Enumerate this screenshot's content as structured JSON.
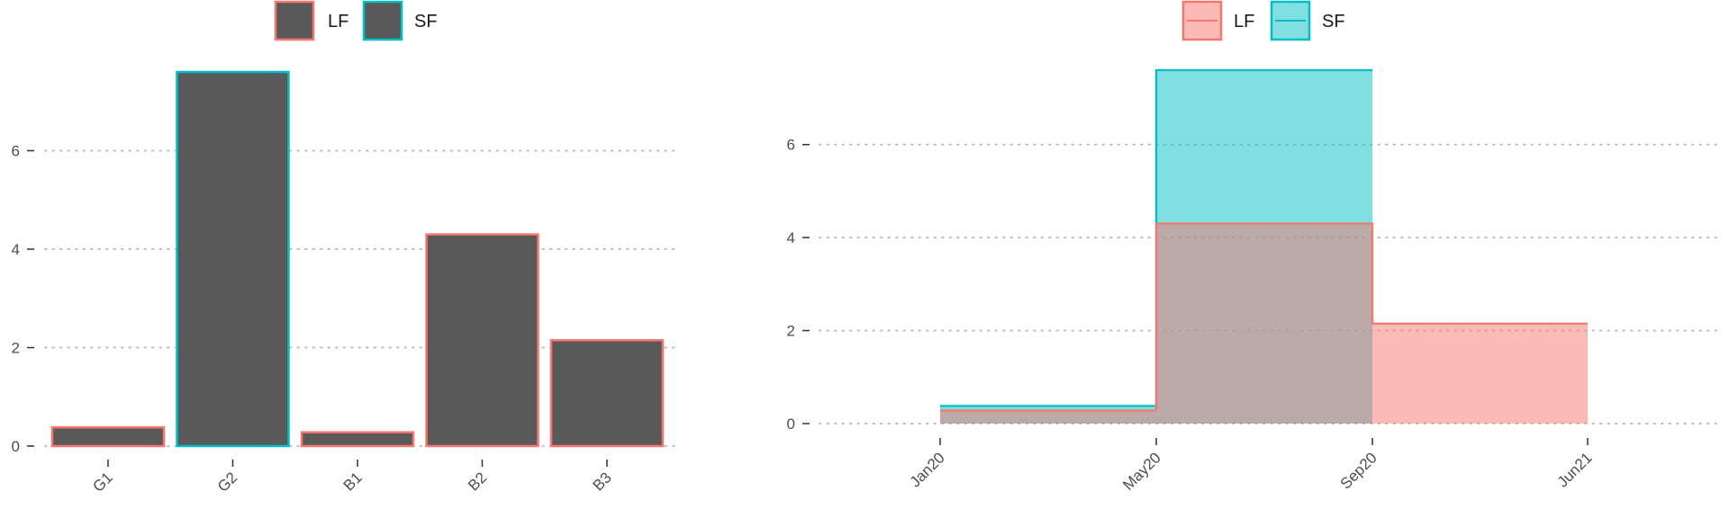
{
  "colors": {
    "LF": "#F8766D",
    "SF": "#00BFC4",
    "bar_fill": "#595959",
    "grid": "#bdbdbd",
    "axis_text": "#4d4d4d"
  },
  "chart_data": [
    {
      "type": "bar",
      "legend": {
        "placement": "top",
        "entries": [
          "LF",
          "SF"
        ]
      },
      "categories": [
        "G1",
        "G2",
        "B1",
        "B2",
        "B3"
      ],
      "values": [
        0.38,
        7.6,
        0.28,
        4.3,
        2.15
      ],
      "outline_group": [
        "LF",
        "SF",
        "LF",
        "LF",
        "LF"
      ],
      "yticks": [
        "0",
        "2",
        "4",
        "6"
      ],
      "ylim": [
        0,
        7.6
      ],
      "grid": "horizontal dotted"
    },
    {
      "type": "area",
      "step": true,
      "legend": {
        "placement": "top",
        "entries": [
          "LF",
          "SF"
        ]
      },
      "x_dates": [
        "Jan20",
        "May20",
        "Sep20",
        "Jun21"
      ],
      "xticks": [
        "Jan20",
        "May20",
        "Sep20",
        "Jun21"
      ],
      "yticks": [
        "0",
        "2",
        "4",
        "6"
      ],
      "ylim": [
        0,
        7.6
      ],
      "grid": "horizontal dotted",
      "series": [
        {
          "name": "LF",
          "x": [
            "Jan20",
            "May20",
            "Sep20",
            "Jun21"
          ],
          "values": [
            0.28,
            4.3,
            2.15,
            2.15
          ]
        },
        {
          "name": "SF",
          "x": [
            "Jan20",
            "May20",
            "Sep20"
          ],
          "values": [
            0.38,
            7.6,
            7.6
          ]
        }
      ]
    }
  ]
}
